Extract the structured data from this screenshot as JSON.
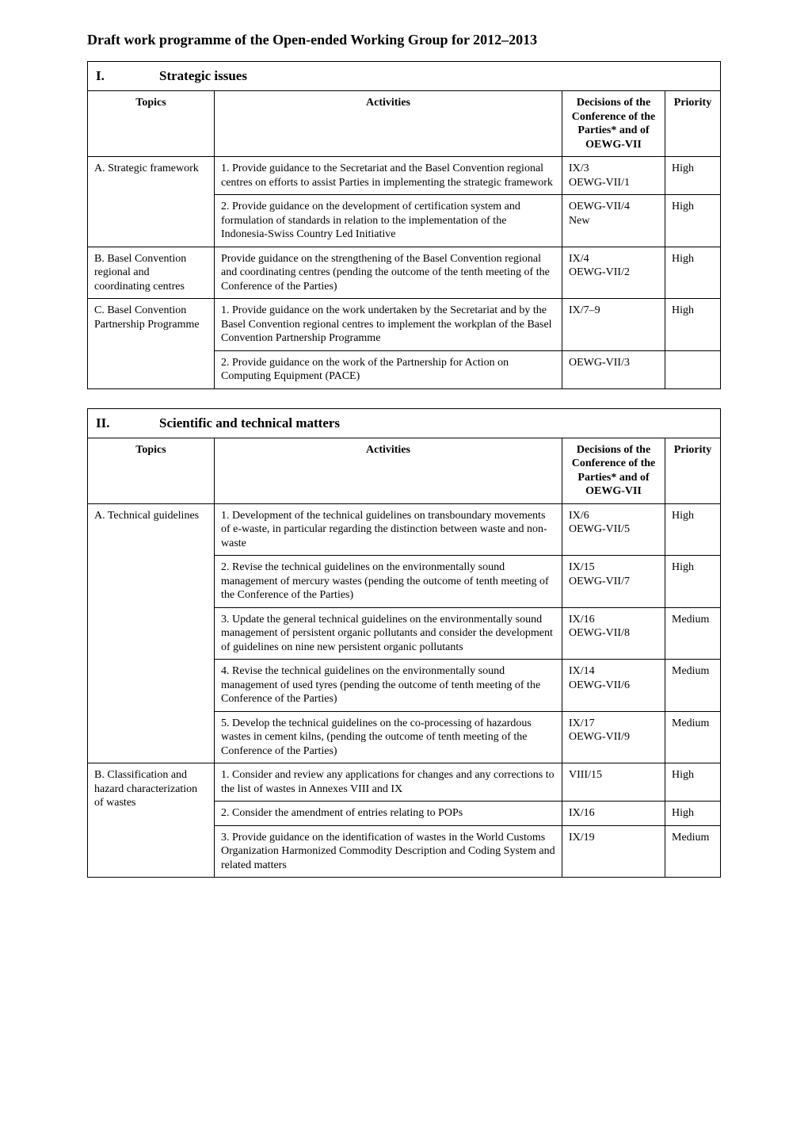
{
  "page": {
    "title": "Draft work programme of the Open-ended Working Group for 2012–2013"
  },
  "headers": {
    "topics": "Topics",
    "activities": "Activities",
    "decisions": "Decisions of the Conference of the Parties* and of OEWG-VII",
    "priority": "Priority"
  },
  "sections": [
    {
      "number": "I.",
      "title": "Strategic issues",
      "rows": [
        {
          "topic": "A. Strategic framework",
          "items": [
            {
              "activity": "1.  Provide guidance to the Secretariat and the Basel Convention regional centres on efforts to assist Parties in implementing the strategic framework",
              "decision": "IX/3\nOEWG-VII/1",
              "priority": "High"
            },
            {
              "activity": "2.  Provide guidance on the development of certification system and formulation of standards in relation to  the implementation of the Indonesia-Swiss Country Led Initiative",
              "decision": "OEWG-VII/4\nNew",
              "priority": "High"
            }
          ]
        },
        {
          "topic": "B. Basel Convention regional and coordinating centres",
          "items": [
            {
              "activity": "Provide guidance on the strengthening of the Basel Convention regional and coordinating centres (pending the outcome of the tenth meeting of the Conference of the Parties)",
              "decision": "IX/4\nOEWG-VII/2",
              "priority": "High"
            }
          ]
        },
        {
          "topic": "C. Basel Convention Partnership Programme",
          "items": [
            {
              "activity": "1.  Provide guidance on the work undertaken by the Secretariat and by the Basel Convention regional centres to implement the workplan of the Basel Convention Partnership Programme",
              "decision": "IX/7–9",
              "priority": "High"
            },
            {
              "activity": "2.  Provide guidance on the work of the Partnership for Action on Computing Equipment (PACE)",
              "decision": "OEWG-VII/3",
              "priority": ""
            }
          ]
        }
      ]
    },
    {
      "number": "II.",
      "title": "Scientific and technical matters",
      "rows": [
        {
          "topic": "A. Technical guidelines",
          "items": [
            {
              "activity": "1.  Development of the technical guidelines on transboundary movements of e-waste, in particular regarding the distinction between waste and non-waste",
              "decision": "IX/6\nOEWG-VII/5",
              "priority": "High"
            },
            {
              "activity": "2.  Revise the technical guidelines on the environmentally sound management of mercury wastes (pending the outcome of tenth meeting of the Conference of the Parties)",
              "decision": "IX/15\nOEWG-VII/7",
              "priority": "High"
            },
            {
              "activity": "3.  Update the general technical guidelines on the environmentally sound management of persistent organic pollutants and consider the development of guidelines on nine new persistent organic pollutants",
              "decision": "IX/16\nOEWG-VII/8",
              "priority": "Medium"
            },
            {
              "activity": "4.  Revise the technical guidelines on the environmentally sound management of used tyres (pending the outcome of tenth meeting of the Conference of the Parties)",
              "decision": "IX/14\nOEWG-VII/6",
              "priority": "Medium"
            },
            {
              "activity": "5.  Develop the technical guidelines on the co-processing of hazardous wastes in cement kilns, (pending the outcome of tenth meeting of the Conference of the Parties)",
              "decision": "IX/17\nOEWG-VII/9",
              "priority": "Medium"
            }
          ]
        },
        {
          "topic": "B. Classification and hazard characterization of wastes",
          "items": [
            {
              "activity": "1.  Consider and review any applications for changes and any corrections to the list of wastes in Annexes VIII and IX",
              "decision": "VIII/15",
              "priority": "High"
            },
            {
              "activity": "2.  Consider the amendment of entries relating to POPs",
              "decision": "IX/16",
              "priority": "High"
            },
            {
              "activity": "3.  Provide guidance on the identification of wastes in the World Customs Organization Harmonized Commodity Description and Coding System and related matters",
              "decision": "IX/19",
              "priority": "Medium"
            }
          ]
        }
      ]
    }
  ]
}
